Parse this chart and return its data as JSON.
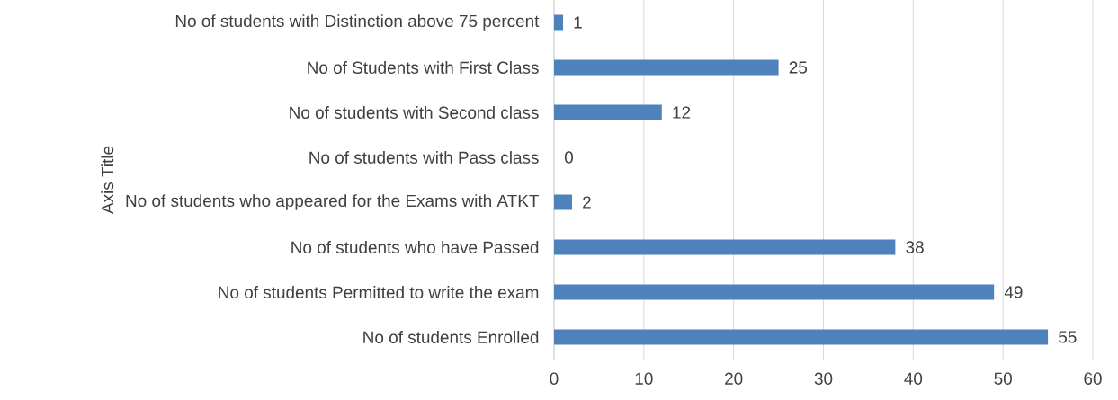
{
  "chart_data": {
    "type": "bar",
    "orientation": "horizontal",
    "ylabel": "Axis Title",
    "categories": [
      "No of students with Distinction above 75 percent",
      "No of Students with First Class",
      "No of students with Second class",
      "No of students with Pass class",
      "No of students who appeared for the Exams with ATKT",
      "No of students who have Passed",
      "No of students Permitted to write the exam",
      "No of students Enrolled"
    ],
    "values": [
      1,
      25,
      12,
      0,
      2,
      38,
      49,
      55
    ],
    "color": "#4f81bd",
    "xlim": [
      0,
      60
    ],
    "xticks": [
      0,
      10,
      20,
      30,
      40,
      50,
      60
    ],
    "grid": "x",
    "data_labels": true
  }
}
